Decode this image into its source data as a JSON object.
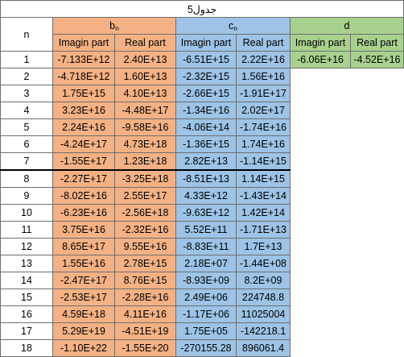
{
  "table": {
    "title": "جدول5",
    "n_header": "n",
    "groups": {
      "b": {
        "base": "b",
        "sub": "n"
      },
      "c": {
        "base": "c",
        "sub": "n"
      },
      "d": {
        "base": "d"
      }
    },
    "subheaders": {
      "imag": "Imagin part",
      "real": "Real part"
    },
    "d_row1": {
      "imag": "-6.06E+16",
      "real": "-4.52E+16"
    },
    "rows": [
      {
        "n": "1",
        "b_imag": "-7.133E+12",
        "b_real": "2.40E+13",
        "c_imag": "-6.51E+15",
        "c_real": "2.22E+16"
      },
      {
        "n": "2",
        "b_imag": "-4.718E+12",
        "b_real": "1.60E+13",
        "c_imag": "-2.32E+15",
        "c_real": "1.56E+16"
      },
      {
        "n": "3",
        "b_imag": "1.75E+15",
        "b_real": "4.10E+13",
        "c_imag": "-2.66E+15",
        "c_real": "-1.91E+17"
      },
      {
        "n": "4",
        "b_imag": "3.23E+16",
        "b_real": "-4.48E+17",
        "c_imag": "-1.34E+16",
        "c_real": "2.02E+17"
      },
      {
        "n": "5",
        "b_imag": "2.24E+16",
        "b_real": "-9.58E+16",
        "c_imag": "-4.06E+14",
        "c_real": "-1.74E+16"
      },
      {
        "n": "6",
        "b_imag": "-4.24E+17",
        "b_real": "4.73E+18",
        "c_imag": "-1.36E+15",
        "c_real": "1.74E+16"
      },
      {
        "n": "7",
        "b_imag": "-1.55E+17",
        "b_real": "1.23E+18",
        "c_imag": "2.82E+13",
        "c_real": "-1.14E+15"
      },
      {
        "n": "8",
        "b_imag": "-2.27E+17",
        "b_real": "-3.25E+18",
        "c_imag": "-8.51E+13",
        "c_real": "1.14E+15"
      },
      {
        "n": "9",
        "b_imag": "-8.02E+16",
        "b_real": "2.55E+17",
        "c_imag": "4.33E+12",
        "c_real": "-1.43E+14"
      },
      {
        "n": "10",
        "b_imag": "-6.23E+16",
        "b_real": "-2.56E+18",
        "c_imag": "-9.63E+12",
        "c_real": "1.42E+14"
      },
      {
        "n": "11",
        "b_imag": "3.75E+16",
        "b_real": "-2.32E+16",
        "c_imag": "5.52E+11",
        "c_real": "-1.71E+13"
      },
      {
        "n": "12",
        "b_imag": "8.65E+17",
        "b_real": "9.55E+16",
        "c_imag": "-8.83E+11",
        "c_real": "1.7E+13"
      },
      {
        "n": "13",
        "b_imag": "1.55E+16",
        "b_real": "2.78E+15",
        "c_imag": "2.18E+07",
        "c_real": "-1.44E+08"
      },
      {
        "n": "14",
        "b_imag": "-2.47E+17",
        "b_real": "8.76E+15",
        "c_imag": "-8.93E+09",
        "c_real": "8.2E+09"
      },
      {
        "n": "15",
        "b_imag": "-2.53E+17",
        "b_real": "-2.28E+16",
        "c_imag": "2.49E+06",
        "c_real": "224748.8"
      },
      {
        "n": "16",
        "b_imag": "4.59E+18",
        "b_real": "4.11E+16",
        "c_imag": "-1.17E+06",
        "c_real": "11025004"
      },
      {
        "n": "17",
        "b_imag": "5.29E+19",
        "b_real": "-4.51E+19",
        "c_imag": "1.75E+05",
        "c_real": "-142218.1"
      },
      {
        "n": "18",
        "b_imag": "-1.10E+22",
        "b_real": "-1.55E+20",
        "c_imag": "-270155.28",
        "c_real": "896061.4"
      }
    ]
  }
}
